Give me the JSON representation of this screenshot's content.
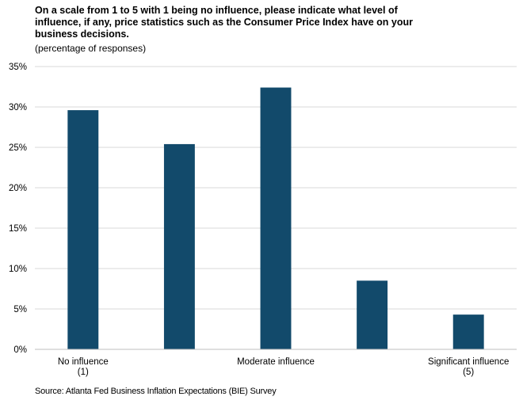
{
  "chart_data": {
    "type": "bar",
    "title": "On a scale from 1 to 5 with 1 being no influence, please indicate what level of influence, if any, price statistics such as the Consumer Price Index have on your business decisions.",
    "subtitle": "(percentage of responses)",
    "categories": [
      [
        "No influence",
        "(1)"
      ],
      [
        ""
      ],
      [
        "Moderate influence"
      ],
      [
        ""
      ],
      [
        "Significant influence",
        "(5)"
      ]
    ],
    "values": [
      29.6,
      25.4,
      32.4,
      8.5,
      4.3
    ],
    "ylim": [
      0,
      35
    ],
    "yticks": [
      0,
      5,
      10,
      15,
      20,
      25,
      30,
      35
    ],
    "ytick_suffix": "%",
    "grid": true,
    "bar_color": "#124a6b",
    "source": "Source: Atlanta Fed Business Inflation Expectations (BIE) Survey"
  }
}
